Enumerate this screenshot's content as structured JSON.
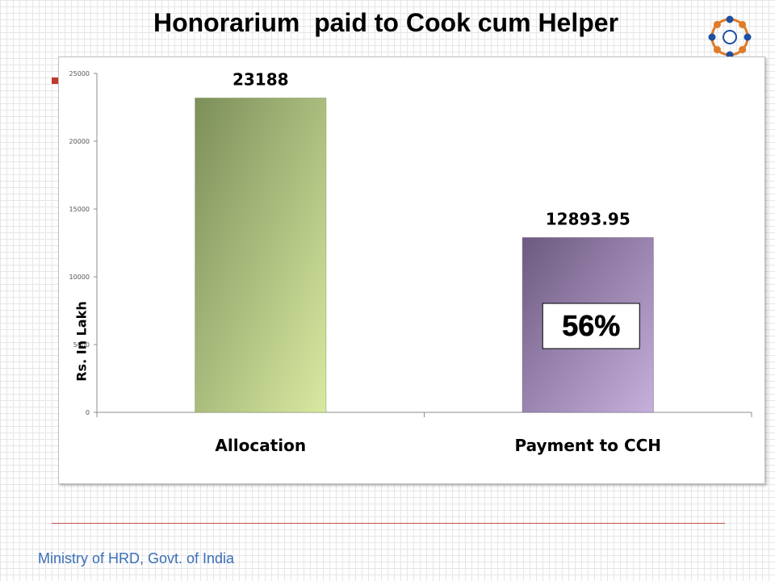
{
  "slide": {
    "title": "Honorarium  paid to Cook cum Helper",
    "footer": "Ministry of HRD, Govt. of India",
    "logo_icon": "mid-day-meal-logo"
  },
  "chart_data": {
    "type": "bar",
    "categories": [
      "Allocation",
      "Payment to CCH"
    ],
    "values": [
      23188,
      12893.95
    ],
    "data_labels": [
      "23188",
      "12893.95"
    ],
    "ylabel": "Rs. In Lakh",
    "ylim": [
      0,
      25000
    ],
    "yticks": [
      0,
      5000,
      10000,
      15000,
      20000,
      25000
    ],
    "ytick_labels": [
      "0",
      "5000",
      "10000",
      "15000",
      "20000",
      "25000"
    ],
    "grid": false,
    "legend": "none",
    "annotation": "56%",
    "bar_colors": [
      [
        "#7d8f5a",
        "#d8eaa0"
      ],
      [
        "#6d5a80",
        "#c6b0dc"
      ]
    ]
  }
}
